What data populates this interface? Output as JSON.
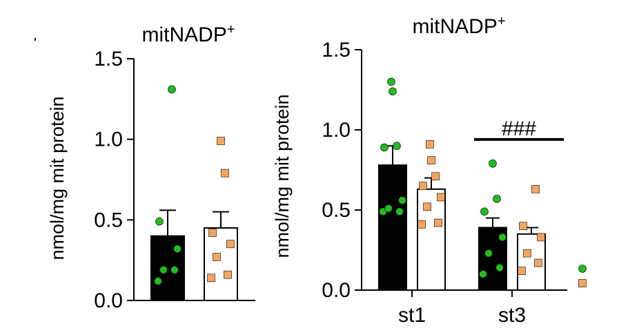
{
  "colors": {
    "bar_black": "#000000",
    "bar_white": "#ffffff",
    "dot_green": "#22bb22",
    "square_orange": "#f4a460"
  },
  "chart_data": [
    {
      "type": "bar",
      "title": "mitNADP",
      "title_sup": "+",
      "ylabel": "nmol/mg mit protein",
      "ylim": [
        0,
        1.5
      ],
      "yticks": [
        "0.0",
        "0.5",
        "1.0",
        "1.5"
      ],
      "categories": [
        ""
      ],
      "series": [
        {
          "values": [
            0.4
          ],
          "error": [
            0.16
          ],
          "fill": "black",
          "points": [
            0.12,
            0.19,
            0.19,
            0.32,
            0.49,
            1.31
          ]
        },
        {
          "values": [
            0.45
          ],
          "error": [
            0.1
          ],
          "fill": "white",
          "points": [
            0.14,
            0.16,
            0.27,
            0.35,
            0.42,
            0.79,
            0.99
          ]
        }
      ]
    },
    {
      "type": "bar",
      "title": "mitNADP",
      "title_sup": "+",
      "ylabel": "nmol/mg mit protein",
      "ylim": [
        0,
        1.5
      ],
      "yticks": [
        "0.0",
        "0.5",
        "1.0",
        "1.5"
      ],
      "categories": [
        "st1",
        "st3"
      ],
      "series": [
        {
          "values": [
            0.78,
            0.39
          ],
          "error": [
            0.12,
            0.06
          ],
          "fill": "black",
          "points": [
            [
              0.49,
              0.49,
              0.51,
              0.56,
              0.89,
              0.9,
              1.24,
              1.3
            ],
            [
              0.1,
              0.14,
              0.23,
              0.33,
              0.49,
              0.57,
              0.79
            ]
          ]
        },
        {
          "values": [
            0.63,
            0.35
          ],
          "error": [
            0.07,
            0.04
          ],
          "fill": "white",
          "points": [
            [
              0.41,
              0.42,
              0.52,
              0.58,
              0.65,
              0.71,
              0.81,
              0.91
            ],
            [
              0.12,
              0.17,
              0.23,
              0.33,
              0.4,
              0.63
            ]
          ]
        }
      ],
      "annotation": "###",
      "annotation_span_category": "st3",
      "annotation_y": 0.94,
      "legend": [
        {
          "marker": "circle",
          "color": "green"
        },
        {
          "marker": "square",
          "color": "orange"
        }
      ]
    }
  ]
}
